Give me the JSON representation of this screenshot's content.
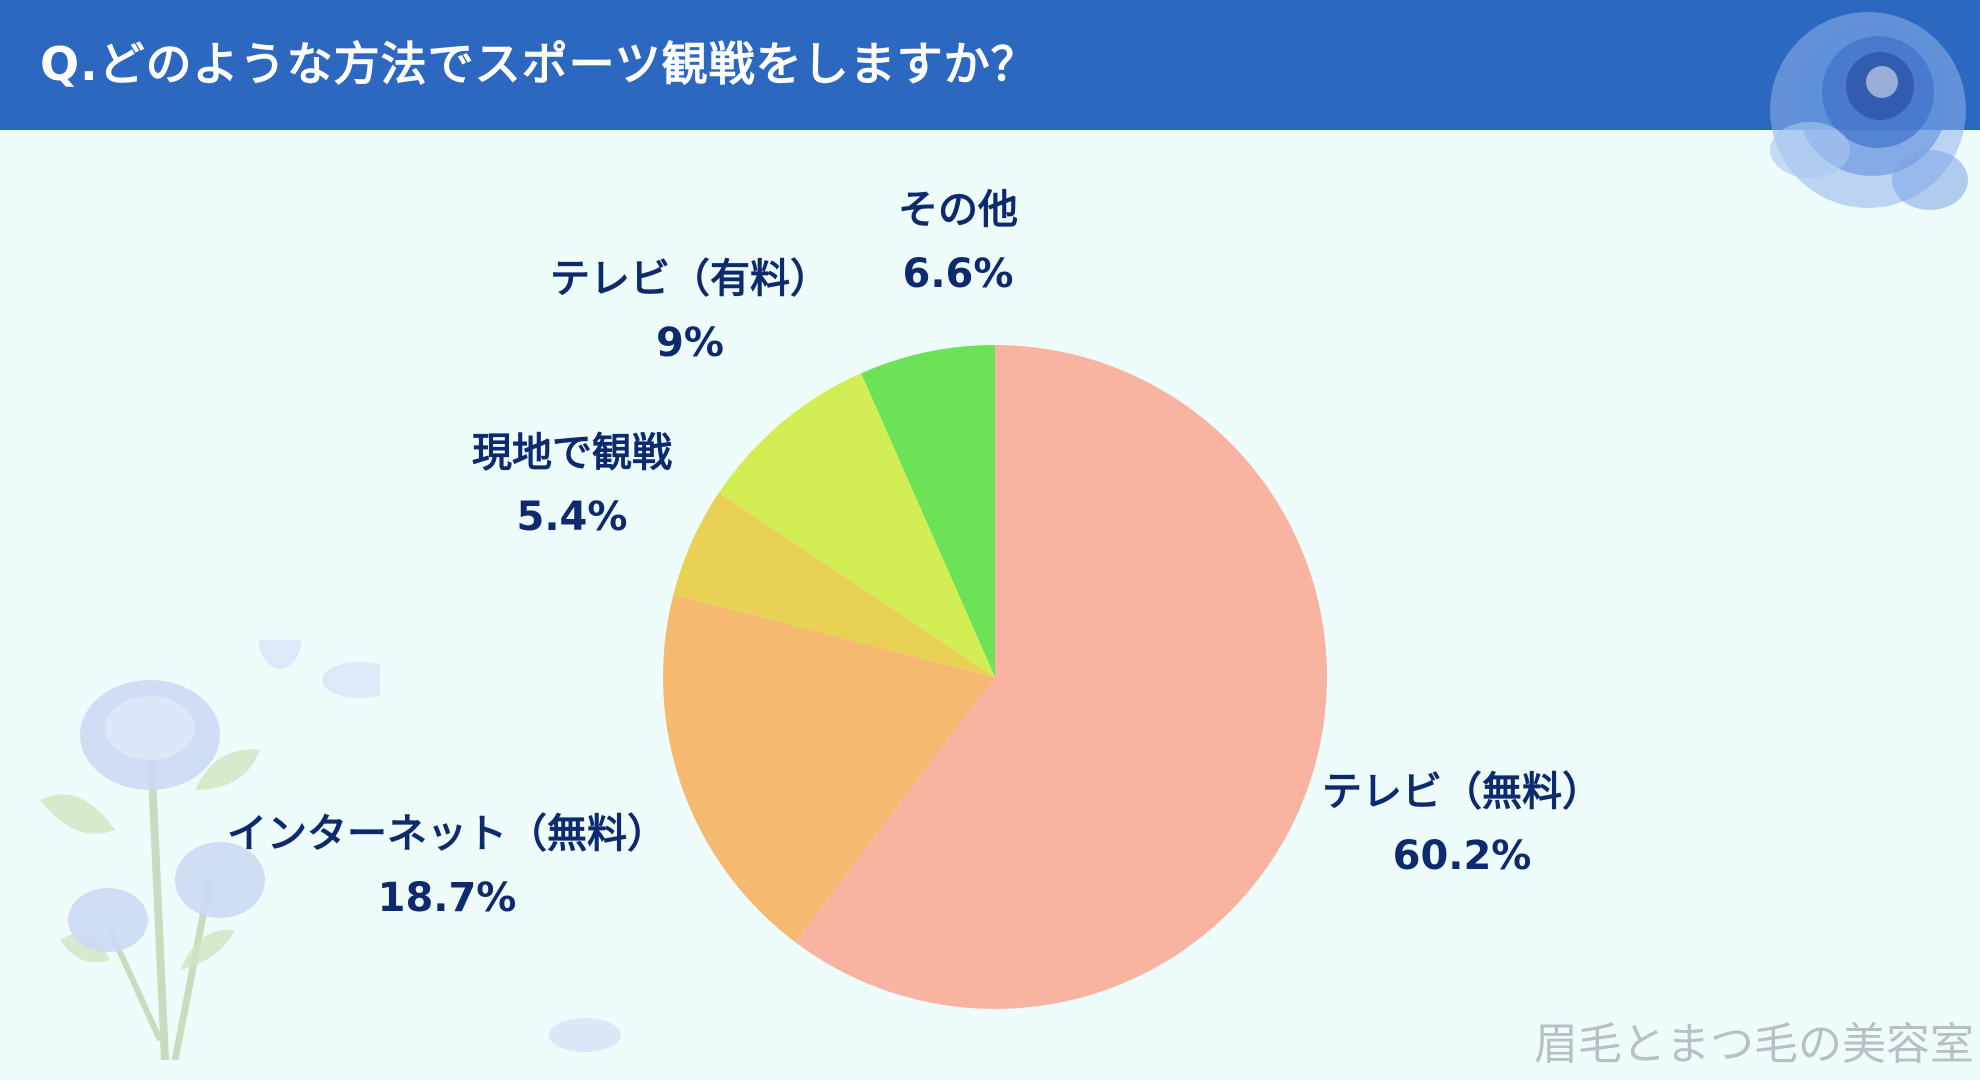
{
  "header": {
    "title": "Q.どのような方法でスポーツ観戦をしますか？"
  },
  "colors": {
    "header": "#2d68c0",
    "background": "#effcfc",
    "label": "#0d2a6e"
  },
  "chart_data": {
    "type": "pie",
    "title": "Q.どのような方法でスポーツ観戦をしますか？",
    "start": "12 o'clock",
    "direction": "clockwise",
    "slices": [
      {
        "label": "テレビ（無料）",
        "value": 60.2,
        "value_label": "60.2%",
        "color": "#f9b4a1"
      },
      {
        "label": "インターネット（無料）",
        "value": 18.7,
        "value_label": "18.7%",
        "color": "#f6b970"
      },
      {
        "label": "現地で観戦",
        "value": 5.4,
        "value_label": "5.4%",
        "color": "#e9d156"
      },
      {
        "label": "テレビ（有料）",
        "value": 9,
        "value_label": "9%",
        "color": "#d3ee55"
      },
      {
        "label": "その他",
        "value": 6.6,
        "value_label": "6.6%",
        "color": "#6ce356"
      }
    ]
  },
  "watermark": "眉毛とまつ毛の美容室",
  "decorations": {
    "top_right": "blue-rose-icon",
    "bottom_left": "blue-rose-bouquet-icon"
  }
}
